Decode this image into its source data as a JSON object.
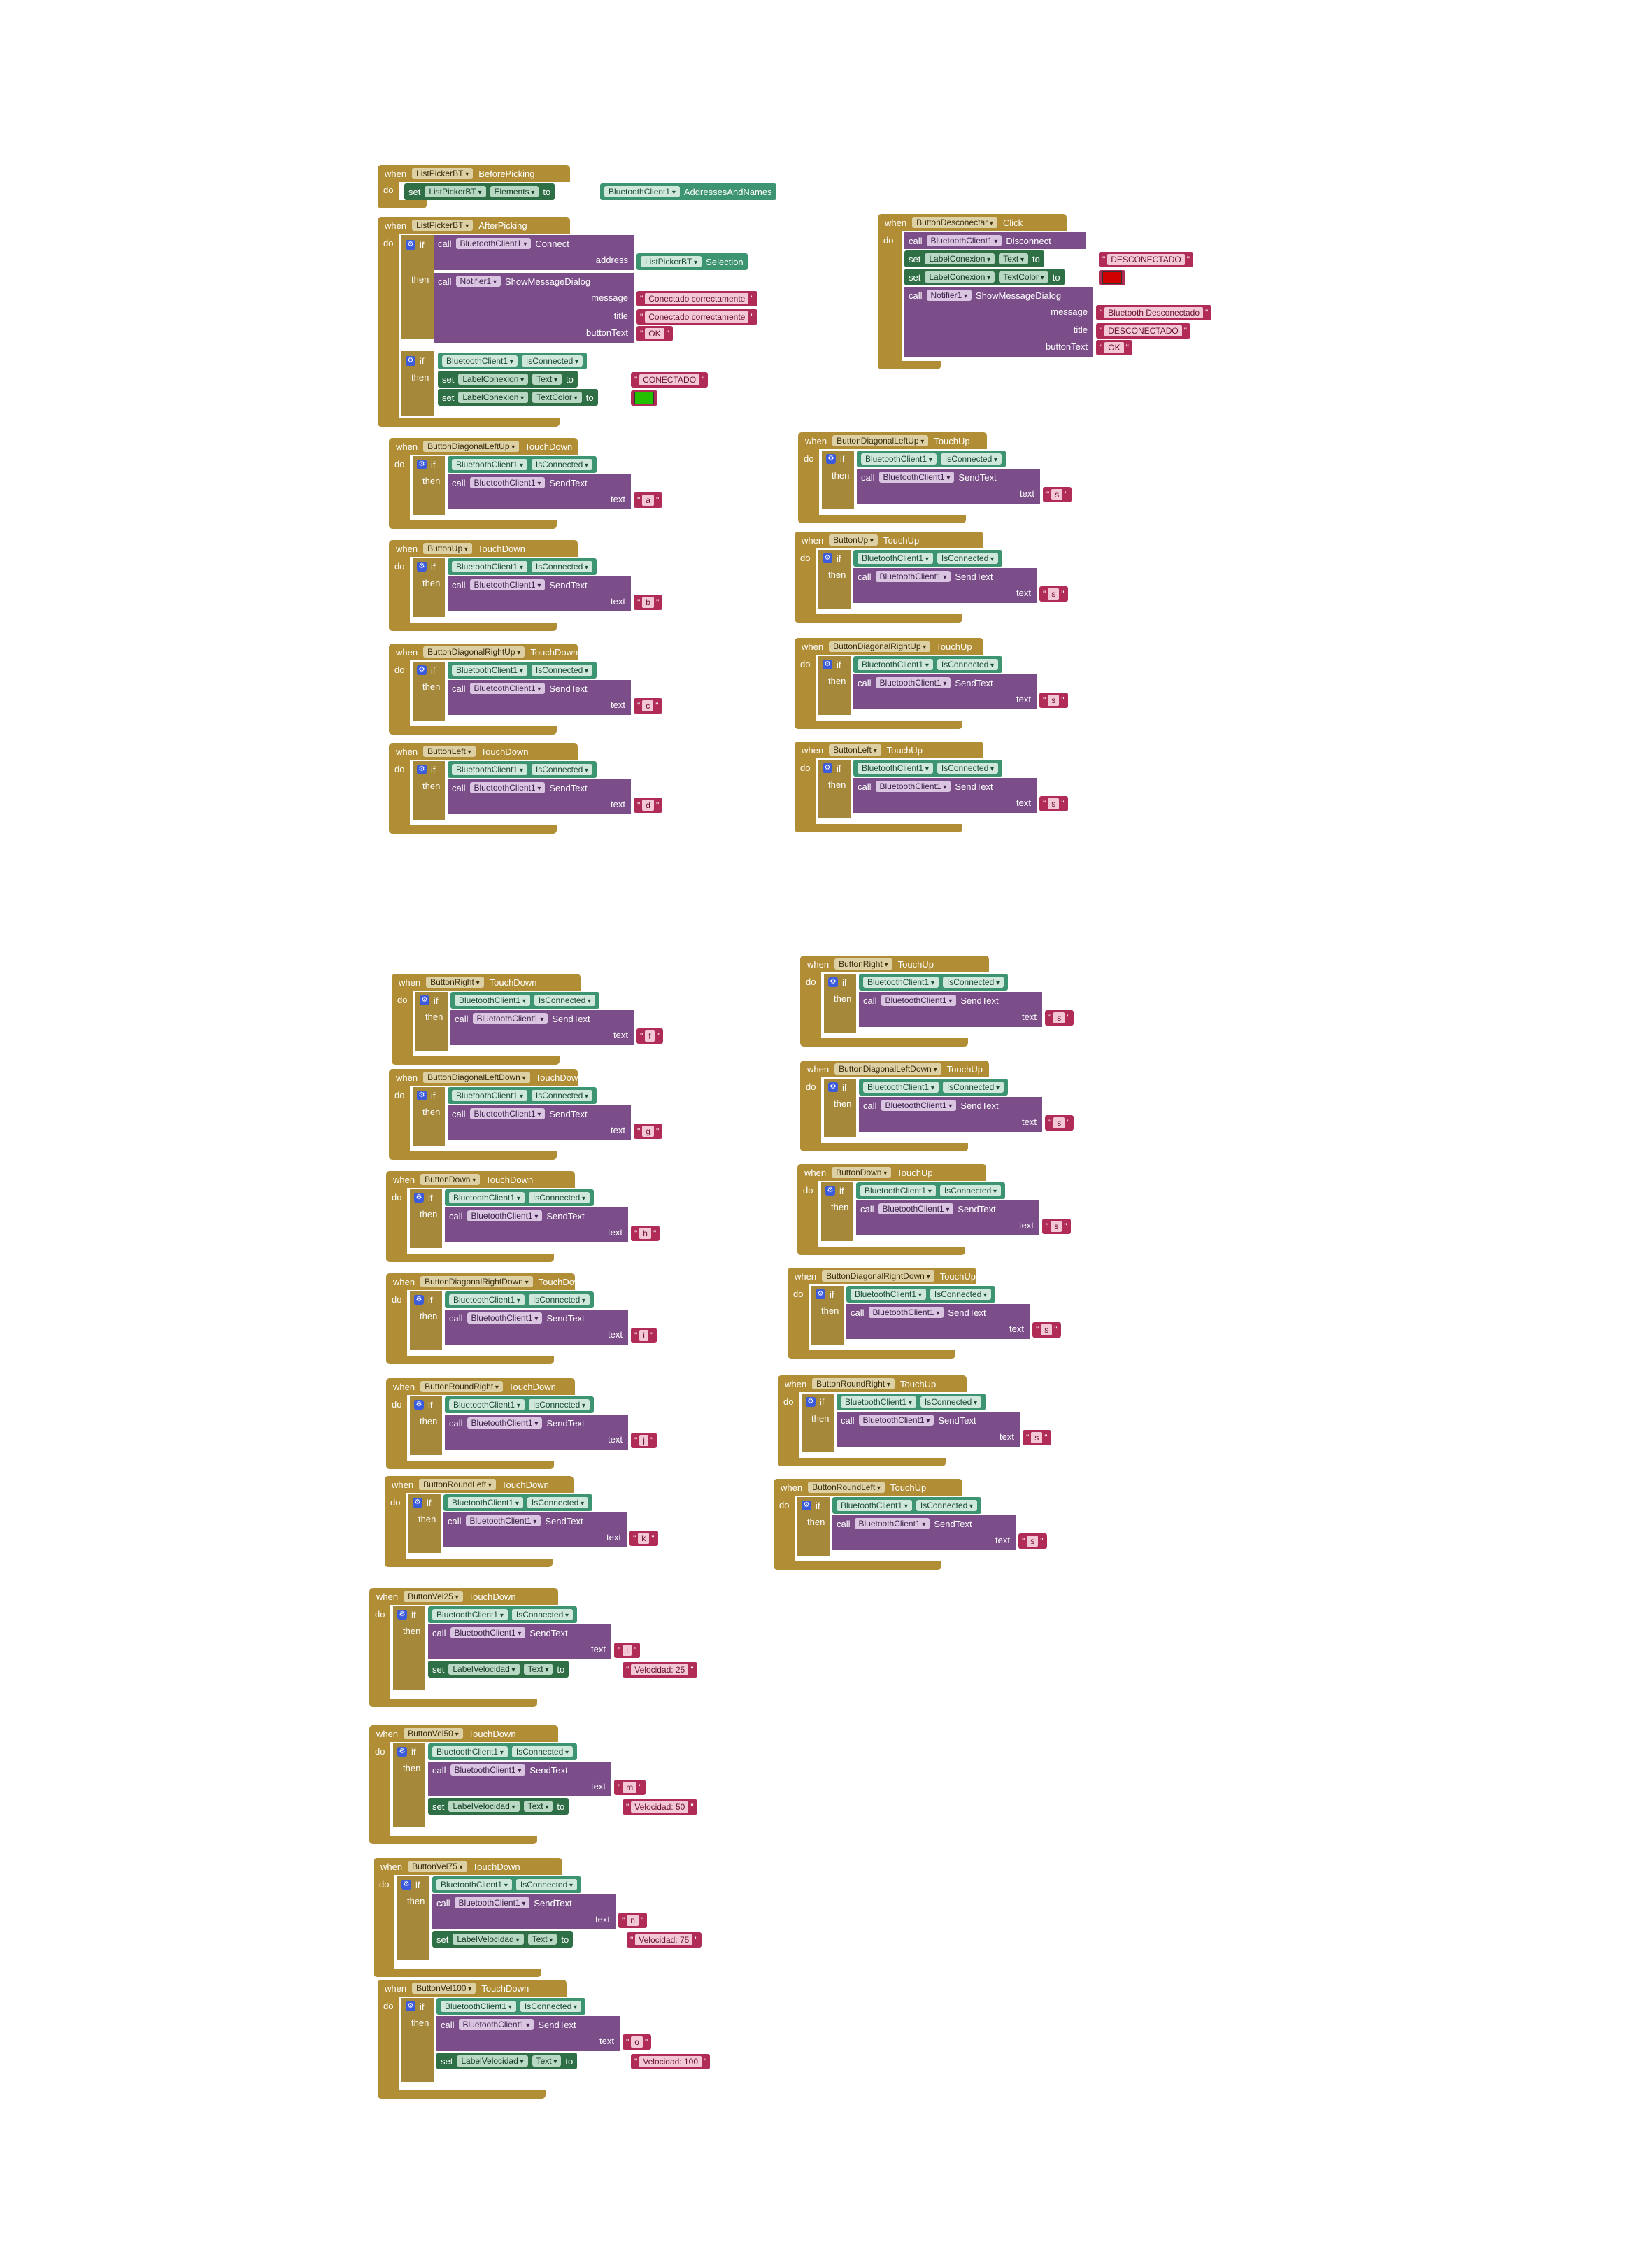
{
  "kw": {
    "when": "when",
    "do": "do",
    "if": "if",
    "then": "then",
    "call": "call",
    "set": "set",
    "to": "to",
    "text": "text",
    "address": "address",
    "message": "message",
    "title": "title",
    "buttonText": "buttonText"
  },
  "comp": {
    "bt": "BluetoothClient1",
    "isConnected": "IsConnected",
    "sendText": "SendText",
    "connect": "Connect",
    "disconnect": "Disconnect",
    "listPicker": "ListPickerBT",
    "beforePicking": "BeforePicking",
    "afterPicking": "AfterPicking",
    "elements": "Elements",
    "addressesAndNames": "AddressesAndNames",
    "selection": "Selection",
    "notifier": "Notifier1",
    "showMessageDialog": "ShowMessageDialog",
    "labelConexion": "LabelConexion",
    "labelVelocidad": "LabelVelocidad",
    "textProp": "Text",
    "textColor": "TextColor",
    "buttonDesconectar": "ButtonDesconectar",
    "click": "Click"
  },
  "strings": {
    "conectadoOk": "Conectado correctamente",
    "ok": "OK",
    "conectado": "CONECTADO",
    "desconectado": "DESCONECTADO",
    "btDesconectado": "Bluetooth Desconectado"
  },
  "colors": {
    "red": "#d00000",
    "green": "#22c000"
  },
  "handlers": [
    {
      "button": "ButtonDiagonalLeftUp",
      "event": "TouchDown",
      "value": "a"
    },
    {
      "button": "ButtonDiagonalLeftUp",
      "event": "TouchUp",
      "value": "s"
    },
    {
      "button": "ButtonUp",
      "event": "TouchDown",
      "value": "b"
    },
    {
      "button": "ButtonUp",
      "event": "TouchUp",
      "value": "s"
    },
    {
      "button": "ButtonDiagonalRightUp",
      "event": "TouchDown",
      "value": "c"
    },
    {
      "button": "ButtonDiagonalRightUp",
      "event": "TouchUp",
      "value": "s"
    },
    {
      "button": "ButtonLeft",
      "event": "TouchDown",
      "value": "d"
    },
    {
      "button": "ButtonLeft",
      "event": "TouchUp",
      "value": "s"
    },
    {
      "button": "ButtonRight",
      "event": "TouchDown",
      "value": "f"
    },
    {
      "button": "ButtonRight",
      "event": "TouchUp",
      "value": "s"
    },
    {
      "button": "ButtonDiagonalLeftDown",
      "event": "TouchDown",
      "value": "g"
    },
    {
      "button": "ButtonDiagonalLeftDown",
      "event": "TouchUp",
      "value": "s"
    },
    {
      "button": "ButtonDown",
      "event": "TouchDown",
      "value": "h"
    },
    {
      "button": "ButtonDown",
      "event": "TouchUp",
      "value": "s"
    },
    {
      "button": "ButtonDiagonalRightDown",
      "event": "TouchDown",
      "value": "i"
    },
    {
      "button": "ButtonDiagonalRightDown",
      "event": "TouchUp",
      "value": "s"
    },
    {
      "button": "ButtonRoundRight",
      "event": "TouchDown",
      "value": "j"
    },
    {
      "button": "ButtonRoundRight",
      "event": "TouchUp",
      "value": "s"
    },
    {
      "button": "ButtonRoundLeft",
      "event": "TouchDown",
      "value": "k"
    },
    {
      "button": "ButtonRoundLeft",
      "event": "TouchUp",
      "value": "s"
    }
  ],
  "vel": [
    {
      "button": "ButtonVel25",
      "event": "TouchDown",
      "value": "l",
      "label": "Velocidad: 25"
    },
    {
      "button": "ButtonVel50",
      "event": "TouchDown",
      "value": "m",
      "label": "Velocidad: 50"
    },
    {
      "button": "ButtonVel75",
      "event": "TouchDown",
      "value": "n",
      "label": "Velocidad: 75"
    },
    {
      "button": "ButtonVel100",
      "event": "TouchDown",
      "value": "o",
      "label": "Velocidad: 100"
    }
  ]
}
